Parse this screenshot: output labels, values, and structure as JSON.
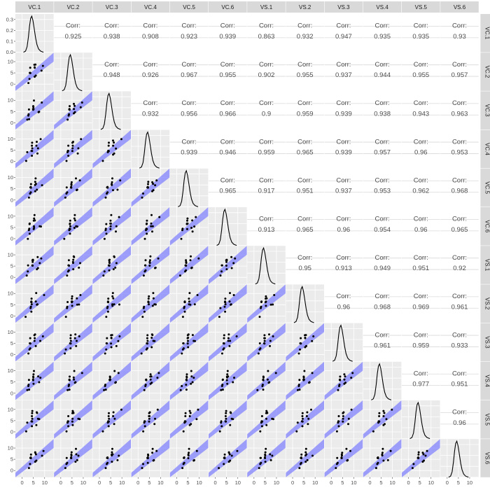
{
  "chart_data": {
    "type": "scatter-matrix",
    "variables": [
      "VC.1",
      "VC.2",
      "VC.3",
      "VC.4",
      "VC.5",
      "VC.6",
      "VS.1",
      "VS.2",
      "VS.3",
      "VS.4",
      "VS.5",
      "VS.6"
    ],
    "corr_label": "Corr:",
    "upper_correlations": [
      [
        null,
        "0.925",
        "0.938",
        "0.908",
        "0.923",
        "0.939",
        "0.863",
        "0.932",
        "0.947",
        "0.935",
        "0.935",
        "0.93"
      ],
      [
        null,
        null,
        "0.948",
        "0.926",
        "0.967",
        "0.955",
        "0.902",
        "0.955",
        "0.937",
        "0.944",
        "0.955",
        "0.957"
      ],
      [
        null,
        null,
        null,
        "0.932",
        "0.956",
        "0.966",
        "0.9",
        "0.959",
        "0.939",
        "0.938",
        "0.943",
        "0.963"
      ],
      [
        null,
        null,
        null,
        null,
        "0.939",
        "0.946",
        "0.959",
        "0.965",
        "0.939",
        "0.957",
        "0.96",
        "0.953"
      ],
      [
        null,
        null,
        null,
        null,
        null,
        "0.965",
        "0.917",
        "0.951",
        "0.937",
        "0.953",
        "0.962",
        "0.968"
      ],
      [
        null,
        null,
        null,
        null,
        null,
        null,
        "0.913",
        "0.965",
        "0.96",
        "0.954",
        "0.96",
        "0.965"
      ],
      [
        null,
        null,
        null,
        null,
        null,
        null,
        null,
        "0.95",
        "0.913",
        "0.949",
        "0.951",
        "0.92"
      ],
      [
        null,
        null,
        null,
        null,
        null,
        null,
        null,
        null,
        "0.96",
        "0.968",
        "0.969",
        "0.961"
      ],
      [
        null,
        null,
        null,
        null,
        null,
        null,
        null,
        null,
        null,
        "0.961",
        "0.959",
        "0.933"
      ],
      [
        null,
        null,
        null,
        null,
        null,
        null,
        null,
        null,
        null,
        null,
        "0.977",
        "0.951"
      ],
      [
        null,
        null,
        null,
        null,
        null,
        null,
        null,
        null,
        null,
        null,
        null,
        "0.96"
      ],
      [
        null,
        null,
        null,
        null,
        null,
        null,
        null,
        null,
        null,
        null,
        null,
        null
      ]
    ],
    "diag_type": "density",
    "diag_ylim": [
      0,
      0.35
    ],
    "diag_yticks": [
      "0.0",
      "0.1",
      "0.2",
      "0.3"
    ],
    "xlim": [
      -3,
      14
    ],
    "ylim": [
      -3,
      14
    ],
    "x_ticks": [
      "0",
      "5",
      "10"
    ],
    "y_ticks": [
      "0",
      "5",
      "10"
    ],
    "band": {
      "slope": 1,
      "intercept_low": -4,
      "intercept_high": 2,
      "color": "#7b7bff"
    },
    "density_points": [
      [
        0.6,
        0.0
      ],
      [
        1.5,
        0.01
      ],
      [
        2.2,
        0.05
      ],
      [
        2.8,
        0.14
      ],
      [
        3.3,
        0.24
      ],
      [
        3.8,
        0.31
      ],
      [
        4.3,
        0.33
      ],
      [
        4.8,
        0.29
      ],
      [
        5.4,
        0.21
      ],
      [
        6.0,
        0.13
      ],
      [
        6.6,
        0.07
      ],
      [
        7.3,
        0.03
      ],
      [
        8.2,
        0.01
      ],
      [
        9.5,
        0.0
      ]
    ],
    "scatter_points": [
      [
        2.3,
        0.5
      ],
      [
        3.0,
        3.2
      ],
      [
        3.4,
        4.7
      ],
      [
        3.8,
        5.6
      ],
      [
        4.1,
        6.7
      ],
      [
        4.4,
        5.2
      ],
      [
        4.7,
        7.7
      ],
      [
        5.0,
        6.1
      ],
      [
        5.3,
        8.4
      ],
      [
        5.6,
        7.0
      ],
      [
        6.0,
        9.6
      ],
      [
        6.4,
        8.1
      ],
      [
        6.8,
        4.1
      ],
      [
        7.3,
        5.2
      ],
      [
        8.1,
        6.0
      ],
      [
        9.0,
        9.0
      ],
      [
        3.6,
        2.5
      ],
      [
        5.8,
        3.9
      ]
    ],
    "grid": true,
    "panel_background": "#ebebeb",
    "strip_background": "#d9d9d9"
  }
}
